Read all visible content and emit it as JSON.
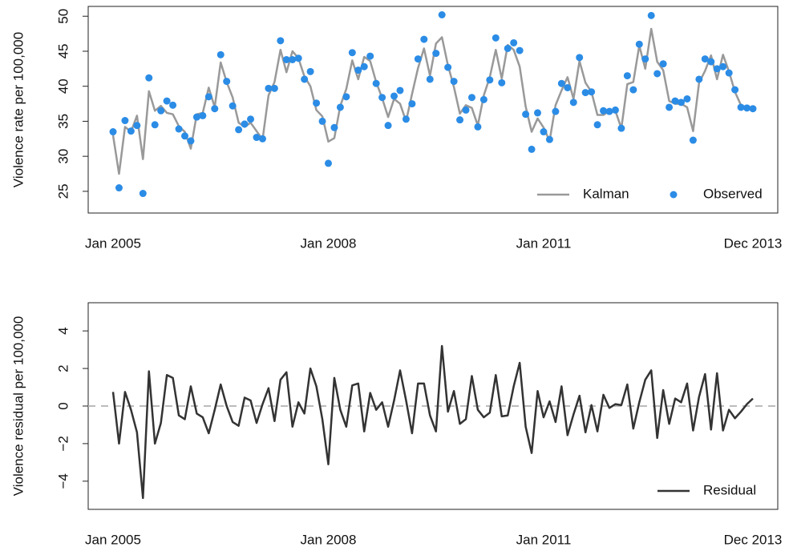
{
  "chart_data": [
    {
      "type": "line",
      "ylabel": "Violence rate per 100,000",
      "categories": [
        "Jan 2005",
        null,
        null,
        null,
        null,
        null,
        null,
        null,
        null,
        null,
        null,
        null,
        null,
        null,
        null,
        null,
        null,
        null,
        null,
        null,
        null,
        null,
        null,
        null,
        null,
        null,
        null,
        null,
        null,
        null,
        null,
        null,
        null,
        null,
        null,
        null,
        "Jan 2008",
        null,
        null,
        null,
        null,
        null,
        null,
        null,
        null,
        null,
        null,
        null,
        null,
        null,
        null,
        null,
        null,
        null,
        null,
        null,
        null,
        null,
        null,
        null,
        null,
        null,
        null,
        null,
        null,
        null,
        null,
        null,
        null,
        null,
        null,
        null,
        "Jan 2011",
        null,
        null,
        null,
        null,
        null,
        null,
        null,
        null,
        null,
        null,
        null,
        null,
        null,
        null,
        null,
        null,
        null,
        null,
        null,
        null,
        null,
        null,
        null,
        null,
        null,
        null,
        null,
        null,
        null,
        null,
        null,
        null,
        null,
        null,
        "Dec 2013"
      ],
      "series": [
        {
          "name": "Kalman",
          "type": "line",
          "color": "#999999",
          "values": [
            33,
            27.5,
            34.2,
            33.5,
            35.8,
            29.6,
            39.3,
            36.5,
            37.2,
            36.2,
            36,
            34.3,
            33.5,
            31.1,
            36,
            36.2,
            39.8,
            37,
            43.4,
            40.6,
            38.4,
            34.8,
            34.2,
            34.8,
            33.6,
            32.4,
            38.7,
            40.6,
            45.2,
            42,
            45,
            44,
            41.4,
            40,
            36.6,
            35.7,
            32.1,
            32.6,
            37.2,
            39.6,
            43.7,
            41,
            44.2,
            43.6,
            40.6,
            38.3,
            35.6,
            38.2,
            37.5,
            35,
            38.9,
            42.6,
            45.4,
            41.5,
            46.1,
            47,
            43,
            39.9,
            36.1,
            37.3,
            36.9,
            34.4,
            38.7,
            41.3,
            45.2,
            41.1,
            45.9,
            45.2,
            42.8,
            37.1,
            33.5,
            35.4,
            34.1,
            32.2,
            37.3,
            39.4,
            41.3,
            38.2,
            43.6,
            40.5,
            39.2,
            35.9,
            35.9,
            36.5,
            36.5,
            34,
            40.3,
            40.6,
            45.8,
            42.5,
            48.2,
            43.5,
            42.3,
            37.9,
            37.5,
            37.5,
            37,
            33.6,
            40.5,
            42.2,
            44.4,
            41,
            44.5,
            42.1,
            39.2,
            37.3,
            36.8,
            36.8
          ]
        },
        {
          "name": "Observed",
          "type": "scatter",
          "color": "#2b8ce6",
          "values": [
            33.5,
            25.5,
            35.1,
            33.6,
            34.4,
            24.7,
            41.2,
            34.5,
            36.5,
            37.9,
            37.3,
            33.9,
            32.9,
            32.2,
            35.6,
            35.8,
            38.5,
            36.8,
            44.5,
            40.7,
            37.2,
            33.8,
            34.6,
            35.3,
            32.7,
            32.5,
            39.7,
            39.7,
            46.5,
            43.8,
            43.8,
            44,
            41,
            42.1,
            37.6,
            35,
            29,
            34.1,
            37,
            38.5,
            44.8,
            42.3,
            42.8,
            44.3,
            40.4,
            38.4,
            34.4,
            38.6,
            39.4,
            35.3,
            37.5,
            43.9,
            46.7,
            41,
            44.7,
            50.2,
            42.7,
            40.7,
            35.2,
            36.6,
            38.4,
            34.2,
            38.1,
            40.9,
            46.9,
            40.5,
            45.4,
            46.2,
            45.1,
            36,
            31,
            36.2,
            33.5,
            32.4,
            36.4,
            40.4,
            39.8,
            37.7,
            44.1,
            39.1,
            39.2,
            34.5,
            36.5,
            36.4,
            36.6,
            34,
            41.5,
            39.5,
            46,
            43.9,
            50.1,
            41.8,
            43.2,
            37,
            37.9,
            37.7,
            38.2,
            32.3,
            41,
            43.9,
            43.5,
            42.5,
            42.8,
            41.9,
            39.5,
            37,
            36.9,
            36.8
          ]
        }
      ],
      "ylim": [
        21.9,
        51.4
      ],
      "yticks": [
        25,
        30,
        35,
        40,
        45,
        50
      ],
      "legend": "bottom-right"
    },
    {
      "type": "line",
      "ylabel": "Violence residual per 100,000",
      "categories": [
        "Jan 2005",
        null,
        null,
        null,
        null,
        null,
        null,
        null,
        null,
        null,
        null,
        null,
        null,
        null,
        null,
        null,
        null,
        null,
        null,
        null,
        null,
        null,
        null,
        null,
        null,
        null,
        null,
        null,
        null,
        null,
        null,
        null,
        null,
        null,
        null,
        null,
        "Jan 2008",
        null,
        null,
        null,
        null,
        null,
        null,
        null,
        null,
        null,
        null,
        null,
        null,
        null,
        null,
        null,
        null,
        null,
        null,
        null,
        null,
        null,
        null,
        null,
        null,
        null,
        null,
        null,
        null,
        null,
        null,
        null,
        null,
        null,
        null,
        null,
        "Jan 2011",
        null,
        null,
        null,
        null,
        null,
        null,
        null,
        null,
        null,
        null,
        null,
        null,
        null,
        null,
        null,
        null,
        null,
        null,
        null,
        null,
        null,
        null,
        null,
        null,
        null,
        null,
        null,
        null,
        null,
        null,
        null,
        null,
        null,
        null,
        "Dec 2013"
      ],
      "series": [
        {
          "name": "Residual",
          "type": "line",
          "color": "#333333",
          "values": [
            0.75,
            -2,
            0.75,
            -0.2,
            -1.4,
            -4.9,
            1.85,
            -2,
            -0.9,
            1.65,
            1.5,
            -0.5,
            -0.7,
            1.05,
            -0.4,
            -0.6,
            -1.45,
            -0.2,
            1.15,
            0,
            -0.85,
            -1.05,
            0.45,
            0.3,
            -0.9,
            0.1,
            0.95,
            -0.8,
            1.4,
            1.8,
            -1.1,
            0.2,
            -0.4,
            2,
            1.05,
            -0.7,
            -3.1,
            1.5,
            -0.2,
            -1.1,
            1.1,
            1.2,
            -1.35,
            0.7,
            -0.2,
            0.2,
            -1.1,
            0.3,
            1.9,
            0.3,
            -1.45,
            1.2,
            1.2,
            -0.5,
            -1.35,
            3.2,
            -0.3,
            0.8,
            -0.95,
            -0.7,
            1.6,
            -0.2,
            -0.6,
            -0.35,
            1.65,
            -0.55,
            -0.5,
            1.05,
            2.3,
            -1.1,
            -2.5,
            0.8,
            -0.6,
            0.25,
            -0.85,
            1.05,
            -1.55,
            -0.45,
            0.55,
            -1.4,
            0.05,
            -1.35,
            0.6,
            -0.1,
            0.1,
            0.05,
            1.15,
            -1.2,
            0.2,
            1.4,
            1.9,
            -1.7,
            0.85,
            -0.95,
            0.4,
            0.2,
            1.2,
            -1.3,
            0.5,
            1.7,
            -1.25,
            1.75,
            -1.3,
            -0.2,
            -0.65,
            -0.3,
            0.1,
            0.4
          ]
        }
      ],
      "ylim": [
        -5.5,
        5.5
      ],
      "yticks": [
        {
          "value": -4,
          "label": "−4"
        },
        {
          "value": -2,
          "label": "−2"
        },
        0,
        2,
        4
      ],
      "hline": 0,
      "hline_color": "#bbbbbb",
      "legend": "bottom-right"
    }
  ]
}
